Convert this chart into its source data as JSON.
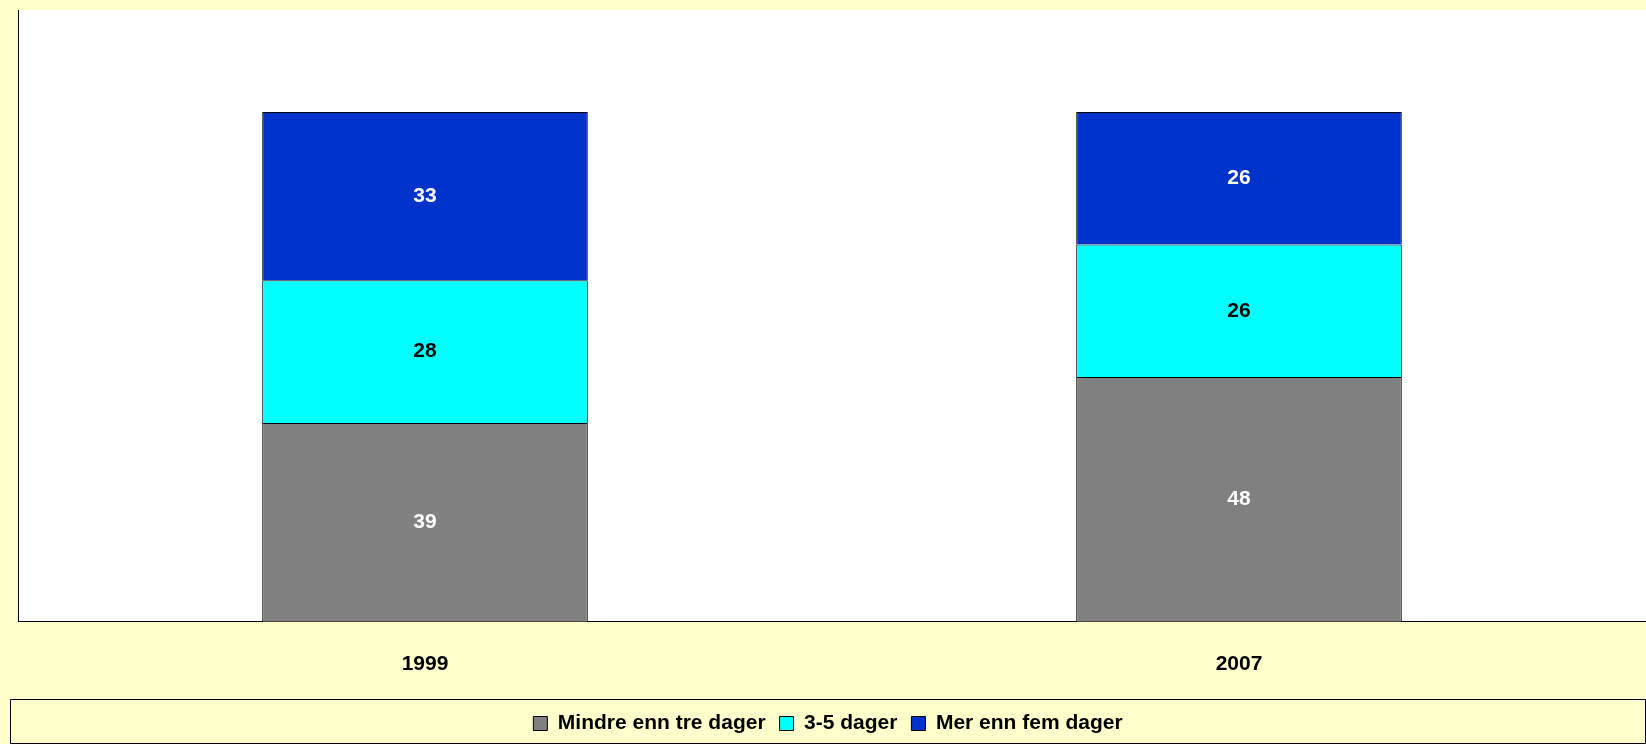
{
  "chart_data": {
    "type": "bar",
    "stacked": true,
    "categories": [
      "1999",
      "2007"
    ],
    "series": [
      {
        "name": "Mindre enn tre dager",
        "color": "#808080",
        "values": [
          39,
          48
        ]
      },
      {
        "name": "3-5 dager",
        "color": "#00ffff",
        "values": [
          28,
          26
        ]
      },
      {
        "name": "Mer enn fem dager",
        "color": "#0033cc",
        "values": [
          33,
          26
        ]
      }
    ],
    "ylim": [
      0,
      120
    ],
    "tick_labels": "x",
    "data_labels": true,
    "legend": "bottom",
    "grid": false
  }
}
